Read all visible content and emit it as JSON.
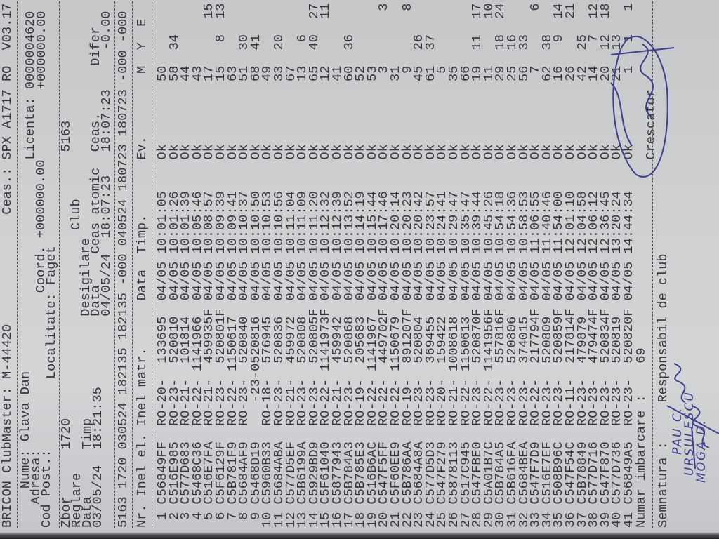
{
  "header": {
    "title": "BRICON ClubMaster: M-44420",
    "clock": "Ceas.: SPX A1717 RO  V03.17",
    "nume_label": "Nume:",
    "nume": "Glava Dan",
    "adresa_label": "Adresa:",
    "cod_post_label": "Cod Post.:",
    "localitate_label": "Localitate:",
    "localitate": "Faget",
    "coord_label": "Coord.",
    "coord_1": "+000000.00",
    "coord_2": "+000000.00",
    "licenta_label": "Licenta:",
    "licenta": "0000004620"
  },
  "flight": {
    "zbor_label": "Zbor",
    "zbor": "1720",
    "club_label": "Club",
    "club": "5163",
    "reglare_label": "Reglare",
    "desigilare_label": "Desigilare",
    "reglare_data_label": "Data",
    "reglare_timp_label": "Timp",
    "reglare_data": "03/05/24",
    "reglare_timp": "18:21:35",
    "desig_data_label": "Data",
    "ceas_atomic_label": "Ceas atomic",
    "ceas_label": "Ceas.",
    "difer_label": "Difer",
    "desig_data": "04/05/24",
    "ceas_atomic": "18:07:23",
    "ceas": "18:07:23",
    "difer": "-0.00"
  },
  "summary_line": "5163 1720 030524 182135 182135 -000 040524 180723 180723 -000 -000",
  "table": {
    "headers": {
      "nr": "Nr.",
      "inel_el": "Inel el.",
      "inel_matr": "Inel matr.",
      "data": "Data",
      "timp": "Timp.",
      "ev": "Ev.",
      "m": "M",
      "y": "Y",
      "e": "E"
    },
    "rows": [
      {
        "nr": "1",
        "inel_el": "C56849FF",
        "club": "RO-20-",
        "matr": "133695",
        "f": "",
        "date": "04/05",
        "time": "10:01:05",
        "ev": "Ok",
        "m": "50",
        "y": "",
        "e": ""
      },
      {
        "nr": "2",
        "inel_el": "C516E985",
        "club": "RO-23-",
        "matr": "520810",
        "f": "",
        "date": "04/05",
        "time": "10:01:26",
        "ev": "Ok",
        "m": "58",
        "y": "34",
        "e": ""
      },
      {
        "nr": "3",
        "inel_el": "C577D683",
        "club": "RO-21-",
        "matr": "101814",
        "f": "",
        "date": "04/05",
        "time": "10:01:39",
        "ev": "Ok",
        "m": "44",
        "y": "",
        "e": ""
      },
      {
        "nr": "4",
        "inel_el": "C5468C36",
        "club": "RO-22-",
        "matr": "1141966",
        "f": "",
        "date": "04/05",
        "time": "10:05:46",
        "ev": "Ok",
        "m": "43",
        "y": "",
        "e": ""
      },
      {
        "nr": "5",
        "inel_el": "C516E7FA",
        "club": "RO-21-",
        "matr": "459935",
        "f": "F",
        "date": "04/05",
        "time": "10:08:57",
        "ev": "Ok",
        "m": "17",
        "y": "",
        "e": "15"
      },
      {
        "nr": "6",
        "inel_el": "C5F6129F",
        "club": "RO-23-",
        "matr": "520801",
        "f": "F",
        "date": "04/05",
        "time": "10:09:39",
        "ev": "Ok",
        "m": "15",
        "y": "8",
        "e": "13"
      },
      {
        "nr": "7",
        "inel_el": "C5B781F9",
        "club": "RO-22-",
        "matr": "1150617",
        "f": "",
        "date": "04/05",
        "time": "10:09:41",
        "ev": "Ok",
        "m": "63",
        "y": "",
        "e": ""
      },
      {
        "nr": "8",
        "inel_el": "C5684AF9",
        "club": "RO-23-",
        "matr": "520840",
        "f": "",
        "date": "04/05",
        "time": "10:10:37",
        "ev": "Ok",
        "m": "51",
        "y": "30",
        "e": ""
      },
      {
        "nr": "9",
        "inel_el": "C5468D19",
        "club": "",
        "matr": "-23-0520816",
        "f": "",
        "date": "04/05",
        "time": "10:10:50",
        "ev": "Ok",
        "m": "68",
        "y": "41",
        "e": ""
      },
      {
        "nr": "10",
        "inel_el": "C5960B33",
        "club": "RO-18-",
        "matr": "576945",
        "f": "",
        "date": "04/05",
        "time": "10:10:53",
        "ev": "Ok",
        "m": "49",
        "y": "",
        "e": ""
      },
      {
        "nr": "11",
        "inel_el": "C5684ABA",
        "club": "RO-23-",
        "matr": "520836",
        "f": "",
        "date": "04/05",
        "time": "10:10:56",
        "ev": "Ok",
        "m": "33",
        "y": "20",
        "e": ""
      },
      {
        "nr": "12",
        "inel_el": "C577D5EF",
        "club": "RO-21-",
        "matr": "459972",
        "f": "",
        "date": "04/05",
        "time": "10:11:04",
        "ev": "Ok",
        "m": "67",
        "y": "",
        "e": ""
      },
      {
        "nr": "13",
        "inel_el": "C5B6199A",
        "club": "RO-23-",
        "matr": "520808",
        "f": "",
        "date": "04/05",
        "time": "10:11:09",
        "ev": "Ok",
        "m": "13",
        "y": "6",
        "e": ""
      },
      {
        "nr": "14",
        "inel_el": "C5929BD9",
        "club": "RO-23-",
        "matr": "520805",
        "f": "F",
        "date": "04/05",
        "time": "10:11:20",
        "ev": "Ok",
        "m": "65",
        "y": "40",
        "e": "27"
      },
      {
        "nr": "15",
        "inel_el": "C5F61040",
        "club": "RO-22-",
        "matr": "1141973",
        "f": "F",
        "date": "04/05",
        "time": "10:12:32",
        "ev": "Ok",
        "m": "12",
        "y": "",
        "e": "11"
      },
      {
        "nr": "16",
        "inel_el": "C5877943",
        "club": "RO-21-",
        "matr": "459942",
        "f": "",
        "date": "04/05",
        "time": "10:12:39",
        "ev": "Ok",
        "m": "41",
        "y": "",
        "e": ""
      },
      {
        "nr": "17",
        "inel_el": "C5B784A3",
        "club": "RO-23-",
        "matr": "520868",
        "f": "",
        "date": "04/05",
        "time": "10:13:52",
        "ev": "Ok",
        "m": "60",
        "y": "36",
        "e": ""
      },
      {
        "nr": "18",
        "inel_el": "C5B785E3",
        "club": "RO-19-",
        "matr": "205683",
        "f": "",
        "date": "04/05",
        "time": "10:14:19",
        "ev": "Ok",
        "m": "52",
        "y": "",
        "e": ""
      },
      {
        "nr": "19",
        "inel_el": "C516B6AC",
        "club": "RO-22-",
        "matr": "1141967",
        "f": "",
        "date": "04/05",
        "time": "10:15:44",
        "ev": "Ok",
        "m": "53",
        "y": "",
        "e": ""
      },
      {
        "nr": "20",
        "inel_el": "C547F5FF",
        "club": "RO-22-",
        "matr": "449702",
        "f": "F",
        "date": "04/05",
        "time": "10:17:46",
        "ev": "Ok",
        "m": "3",
        "y": "",
        "e": "3"
      },
      {
        "nr": "21",
        "inel_el": "C5F60EE9",
        "club": "RO-22-",
        "matr": "1150679",
        "f": "",
        "date": "04/05",
        "time": "10:20:14",
        "ev": "Ok",
        "m": "31",
        "y": "",
        "e": ""
      },
      {
        "nr": "22",
        "inel_el": "C5B786AA",
        "club": "RO-19-",
        "matr": "891207",
        "f": "F",
        "date": "04/05",
        "time": "10:20:23",
        "ev": "Ok",
        "m": "9",
        "y": "",
        "e": "8"
      },
      {
        "nr": "23",
        "inel_el": "C5684A8A",
        "club": "RO-23-",
        "matr": "520804",
        "f": "",
        "date": "04/05",
        "time": "10:20:42",
        "ev": "Ok",
        "m": "45",
        "y": "26",
        "e": ""
      },
      {
        "nr": "24",
        "inel_el": "C577D5D3",
        "club": "RO-23-",
        "matr": "369455",
        "f": "",
        "date": "04/05",
        "time": "10:23:57",
        "ev": "Ok",
        "m": "61",
        "y": "37",
        "e": ""
      },
      {
        "nr": "25",
        "inel_el": "C547F279",
        "club": "RO-20-",
        "matr": "159422",
        "f": "",
        "date": "04/05",
        "time": "10:24:41",
        "ev": "Ok",
        "m": "5",
        "y": "",
        "e": ""
      },
      {
        "nr": "26",
        "inel_el": "C5878113",
        "club": "RO-21-",
        "matr": "1008618",
        "f": "",
        "date": "04/05",
        "time": "10:29:47",
        "ev": "Ok",
        "m": "35",
        "y": "",
        "e": ""
      },
      {
        "nr": "27",
        "inel_el": "C517C945",
        "club": "RO-22-",
        "matr": "1150613",
        "f": "",
        "date": "04/05",
        "time": "10:35:47",
        "ev": "Ok",
        "m": "66",
        "y": "",
        "e": ""
      },
      {
        "nr": "28",
        "inel_el": "C547FBE0",
        "club": "RO-23-",
        "matr": "520870",
        "f": "F",
        "date": "04/05",
        "time": "10:39:44",
        "ev": "Ok",
        "m": "19",
        "y": "11",
        "e": "17"
      },
      {
        "nr": "29",
        "inel_el": "C5A01B7C",
        "club": "RO-22-",
        "matr": "1141956",
        "f": "F",
        "date": "04/05",
        "time": "10:45:26",
        "ev": "Ok",
        "m": "11",
        "y": "",
        "e": "10"
      },
      {
        "nr": "30",
        "inel_el": "C5B784A5",
        "club": "RO-23-",
        "matr": "557816",
        "f": "F",
        "date": "04/05",
        "time": "10:54:18",
        "ev": "Ok",
        "m": "29",
        "y": "18",
        "e": "24"
      },
      {
        "nr": "31",
        "inel_el": "C5B616FA",
        "club": "RO-23-",
        "matr": "520806",
        "f": "",
        "date": "04/05",
        "time": "10:54:36",
        "ev": "Ok",
        "m": "25",
        "y": "16",
        "e": ""
      },
      {
        "nr": "32",
        "inel_el": "C5684BEA",
        "club": "RO-23-",
        "matr": "374015",
        "f": "",
        "date": "04/05",
        "time": "10:58:53",
        "ev": "Ok",
        "m": "56",
        "y": "33",
        "e": ""
      },
      {
        "nr": "33",
        "inel_el": "C547F7D9",
        "club": "RO-22-",
        "matr": "217794",
        "f": "F",
        "date": "04/05",
        "time": "11:06:55",
        "ev": "Ok",
        "m": "7",
        "y": "",
        "e": "6"
      },
      {
        "nr": "34",
        "inel_el": "C516E7EF",
        "club": "RO-23-",
        "matr": "520809",
        "f": "",
        "date": "04/05",
        "time": "11:40:46",
        "ev": "Ok",
        "m": "62",
        "y": "38",
        "e": ""
      },
      {
        "nr": "35",
        "inel_el": "C508B96C",
        "club": "RO-23-",
        "matr": "520859",
        "f": "F",
        "date": "04/05",
        "time": "11:54:00",
        "ev": "Ok",
        "m": "16",
        "y": "9",
        "e": "14"
      },
      {
        "nr": "36",
        "inel_el": "C547F54C",
        "club": "RO-11-",
        "matr": "217814",
        "f": "F",
        "date": "04/05",
        "time": "12:01:10",
        "ev": "Ok",
        "m": "26",
        "y": "",
        "e": "21"
      },
      {
        "nr": "37",
        "inel_el": "C5B78849",
        "club": "RO-23-",
        "matr": "479879",
        "f": "",
        "date": "04/05",
        "time": "12:04:58",
        "ev": "Ok",
        "m": "42",
        "y": "25",
        "e": ""
      },
      {
        "nr": "38",
        "inel_el": "C577D716",
        "club": "RO-23-",
        "matr": "479474",
        "f": "F",
        "date": "04/05",
        "time": "12:06:12",
        "ev": "Ok",
        "m": "14",
        "y": "7",
        "e": "12"
      },
      {
        "nr": "39",
        "inel_el": "C547F870",
        "club": "RO-23-",
        "matr": "520834",
        "f": "F",
        "date": "04/05",
        "time": "12:36:45",
        "ev": "Ok",
        "m": "20",
        "y": "12",
        "e": "18"
      },
      {
        "nr": "40",
        "inel_el": "C577D736",
        "club": "RO-23-",
        "matr": "520819",
        "f": "",
        "date": "04/05",
        "time": "13:20:24",
        "ev": "Ok",
        "m": "21",
        "y": "13",
        "e": ""
      },
      {
        "nr": "41",
        "inel_el": "C56849A5",
        "club": "RO-23-",
        "matr": "520820",
        "f": "F",
        "date": "04/05",
        "time": "14:44:34",
        "ev": "Ok",
        "m": "1",
        "y": "1",
        "e": "1"
      }
    ]
  },
  "footer": {
    "numar_label": "Numar imbarcare :",
    "numar": "69",
    "semnatura_label": "Semnatura :",
    "responsabil_label": "Responsabil de club",
    "crescator_label": "Crescator",
    "handwritten": [
      "PAU C.",
      "URSULESCU",
      "MOGA D."
    ]
  },
  "colors": {
    "paper": "#cfd0d2",
    "ink": "#34363b",
    "pen": "#3d3f8e"
  }
}
